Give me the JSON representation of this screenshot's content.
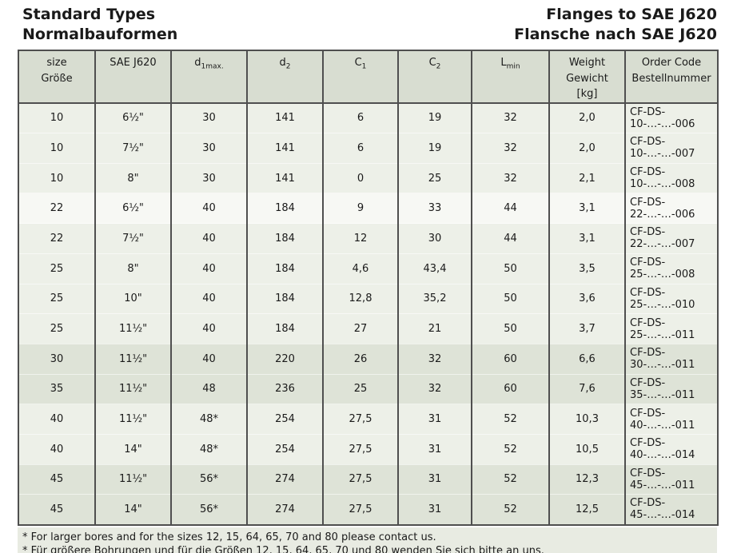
{
  "titles": {
    "left": [
      "Standard Types",
      "Normalbauformen"
    ],
    "right": [
      "Flanges to SAE J620",
      "Flansche nach SAE J620"
    ]
  },
  "table": {
    "headers": [
      {
        "key": "size",
        "lines": [
          {
            "text": "size"
          },
          {
            "text": "Größe"
          }
        ]
      },
      {
        "key": "sae-j620",
        "lines": [
          {
            "text": "SAE J620"
          }
        ]
      },
      {
        "key": "d1max",
        "lines": [
          {
            "text": "d",
            "sub": "1max."
          }
        ]
      },
      {
        "key": "d2",
        "lines": [
          {
            "text": "d",
            "sub": "2"
          }
        ]
      },
      {
        "key": "c1",
        "lines": [
          {
            "text": "C",
            "sub": "1"
          }
        ]
      },
      {
        "key": "c2",
        "lines": [
          {
            "text": "C",
            "sub": "2"
          }
        ]
      },
      {
        "key": "lmin",
        "lines": [
          {
            "text": "L",
            "sub": "min"
          }
        ]
      },
      {
        "key": "weight",
        "lines": [
          {
            "text": "Weight"
          },
          {
            "text": "Gewicht"
          },
          {
            "text": "[kg]"
          }
        ]
      },
      {
        "key": "order-code",
        "lines": [
          {
            "text": "Order Code"
          },
          {
            "text": "Bestellnummer"
          }
        ]
      }
    ],
    "rows": [
      {
        "shade": "light",
        "cells": [
          "10",
          "6½\"",
          "30",
          "141",
          "6",
          "19",
          "32",
          "2,0",
          "CF-DS-10-…-…-006"
        ]
      },
      {
        "shade": "light",
        "cells": [
          "10",
          "7½\"",
          "30",
          "141",
          "6",
          "19",
          "32",
          "2,0",
          "CF-DS-10-…-…-007"
        ]
      },
      {
        "shade": "light",
        "cells": [
          "10",
          "8\"",
          "30",
          "141",
          "0",
          "25",
          "32",
          "2,1",
          "CF-DS-10-…-…-008"
        ]
      },
      {
        "shade": "white",
        "cells": [
          "22",
          "6½\"",
          "40",
          "184",
          "9",
          "33",
          "44",
          "3,1",
          "CF-DS-22-…-…-006"
        ]
      },
      {
        "shade": "light",
        "cells": [
          "22",
          "7½\"",
          "40",
          "184",
          "12",
          "30",
          "44",
          "3,1",
          "CF-DS-22-…-…-007"
        ]
      },
      {
        "shade": "light",
        "cells": [
          "25",
          "8\"",
          "40",
          "184",
          "4,6",
          "43,4",
          "50",
          "3,5",
          "CF-DS-25-…-…-008"
        ]
      },
      {
        "shade": "light",
        "cells": [
          "25",
          "10\"",
          "40",
          "184",
          "12,8",
          "35,2",
          "50",
          "3,6",
          "CF-DS-25-…-…-010"
        ]
      },
      {
        "shade": "light",
        "cells": [
          "25",
          "11½\"",
          "40",
          "184",
          "27",
          "21",
          "50",
          "3,7",
          "CF-DS-25-…-…-011"
        ]
      },
      {
        "shade": "dark",
        "cells": [
          "30",
          "11½\"",
          "40",
          "220",
          "26",
          "32",
          "60",
          "6,6",
          "CF-DS-30-…-…-011"
        ]
      },
      {
        "shade": "dark",
        "cells": [
          "35",
          "11½\"",
          "48",
          "236",
          "25",
          "32",
          "60",
          "7,6",
          "CF-DS-35-…-…-011"
        ]
      },
      {
        "shade": "light",
        "cells": [
          "40",
          "11½\"",
          "48*",
          "254",
          "27,5",
          "31",
          "52",
          "10,3",
          "CF-DS-40-…-…-011"
        ]
      },
      {
        "shade": "light",
        "cells": [
          "40",
          "14\"",
          "48*",
          "254",
          "27,5",
          "31",
          "52",
          "10,5",
          "CF-DS-40-…-…-014"
        ]
      },
      {
        "shade": "dark",
        "cells": [
          "45",
          "11½\"",
          "56*",
          "274",
          "27,5",
          "31",
          "52",
          "12,3",
          "CF-DS-45-…-…-011"
        ]
      },
      {
        "shade": "dark",
        "cells": [
          "45",
          "14\"",
          "56*",
          "274",
          "27,5",
          "31",
          "52",
          "12,5",
          "CF-DS-45-…-…-014"
        ]
      }
    ]
  },
  "footnotes": [
    "* For larger bores and for the sizes 12, 15, 64, 65, 70 and 80 please contact us.",
    "* Für größere Bohrungen und für die Größen 12, 15, 64, 65, 70 und 80 wenden Sie sich bitte an uns."
  ],
  "colors": {
    "text": "#1a1a1a",
    "border": "#4f4f4f",
    "header_bg": "#d8ddd1",
    "row_light": "#edf0e8",
    "row_white": "#f7f8f4",
    "row_dark": "#dee3d7",
    "notes_bg": "#e8ebe2"
  }
}
